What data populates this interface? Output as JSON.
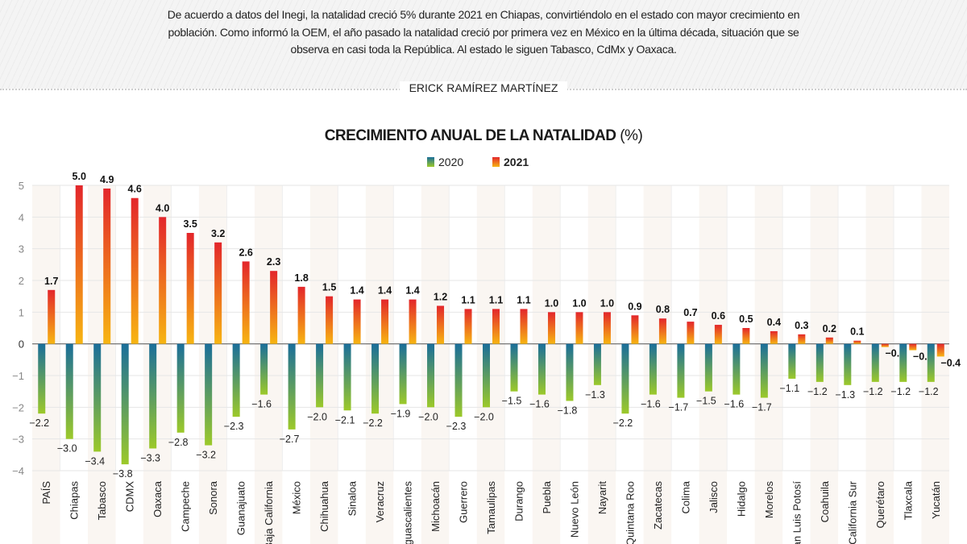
{
  "intro": "De acuerdo a datos del Inegi, la natalidad creció 5% durante 2021 en Chiapas, convirtiéndolo en el estado con mayor crecimiento en población. Como informó la OEM, el año pasado la natalidad creció por primera vez en México en la última década, situación que se observa en casi toda la República. Al estado le siguen Tabasco, CdMx y Oaxaca.",
  "byline": "ERICK RAMÍREZ MARTÍNEZ",
  "colors": {
    "2020_top": "#1a6e9a",
    "2020_bottom": "#9cc92a",
    "2021_top": "#e3262b",
    "2021_bottom": "#f7b512"
  },
  "chart_data": {
    "type": "bar",
    "title": "CRECIMIENTO ANUAL DE LA NATALIDAD",
    "title_unit": "(%)",
    "legend_position": "top-center",
    "grid": true,
    "ylim": [
      -4,
      5
    ],
    "yticks": [
      5,
      4,
      3,
      2,
      1,
      0,
      -1,
      -2,
      -3,
      -4
    ],
    "categories": [
      "PAÍS",
      "Chiapas",
      "Tabasco",
      "CDMX",
      "Oaxaca",
      "Campeche",
      "Sonora",
      "Guanajuato",
      "Baja California",
      "México",
      "Chihuahua",
      "Sinaloa",
      "Veracruz",
      "Aguascalientes",
      "Michoacán",
      "Guerrero",
      "Tamaulipas",
      "Durango",
      "Puebla",
      "Nuevo León",
      "Nayarit",
      "Quintana Roo",
      "Zacatecas",
      "Colima",
      "Jalisco",
      "Hidalgo",
      "Morelos",
      "San Luis Potosí",
      "Coahuila",
      "Baja California Sur",
      "Querétaro",
      "Tlaxcala",
      "Yucatán"
    ],
    "series": [
      {
        "name": "2020",
        "values": [
          -2.2,
          -3.0,
          -3.4,
          -3.8,
          -3.3,
          -2.8,
          -3.2,
          -2.3,
          -1.6,
          -2.7,
          -2.0,
          -2.1,
          -2.2,
          -1.9,
          -2.0,
          -2.3,
          -2.0,
          -1.5,
          -1.6,
          -1.8,
          -1.3,
          -2.2,
          -1.6,
          -1.7,
          -1.5,
          -1.6,
          -1.7,
          -1.1,
          -1.2,
          -1.3,
          -1.2,
          -1.2,
          -1.2
        ]
      },
      {
        "name": "2021",
        "values": [
          1.7,
          5.0,
          4.9,
          4.6,
          4.0,
          3.5,
          3.2,
          2.6,
          2.3,
          1.8,
          1.5,
          1.4,
          1.4,
          1.4,
          1.2,
          1.1,
          1.1,
          1.1,
          1.0,
          1.0,
          1.0,
          0.9,
          0.8,
          0.7,
          0.6,
          0.5,
          0.4,
          0.3,
          0.2,
          0.1,
          -0.1,
          -0.2,
          -0.4
        ]
      }
    ]
  }
}
